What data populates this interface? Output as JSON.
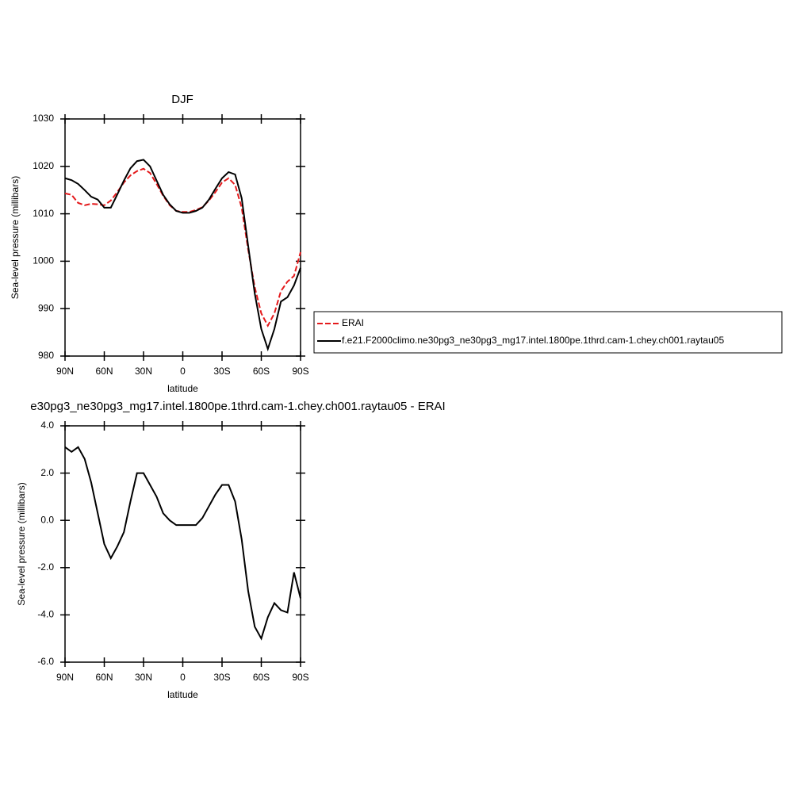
{
  "chart_data": [
    {
      "type": "line",
      "title": "DJF",
      "xlabel": "latitude",
      "ylabel": "Sea-level pressure (millibars)",
      "x": [
        90,
        85,
        80,
        75,
        70,
        65,
        60,
        55,
        50,
        45,
        40,
        35,
        30,
        25,
        20,
        15,
        10,
        5,
        0,
        -5,
        -10,
        -15,
        -20,
        -25,
        -30,
        -35,
        -40,
        -45,
        -50,
        -55,
        -60,
        -65,
        -70,
        -75,
        -80,
        -85,
        -90
      ],
      "series": [
        {
          "name": "ERAI",
          "color": "#e41a1c",
          "dash": true,
          "values": [
            1014.3,
            1014,
            1012.3,
            1011.8,
            1012.1,
            1012,
            1011.8,
            1012.8,
            1014.6,
            1016.6,
            1018.1,
            1019,
            1019.5,
            1018.6,
            1016.3,
            1013.8,
            1011.8,
            1010.6,
            1010.4,
            1010.4,
            1010.8,
            1011.4,
            1012.8,
            1014.6,
            1016.6,
            1017.5,
            1016.1,
            1011.3,
            1002.4,
            994.5,
            989,
            986.4,
            989,
            993.7,
            995.7,
            996.9,
            1001.9
          ]
        },
        {
          "name": "f.e21.F2000climo.ne30pg3_ne30pg3_mg17.intel.1800pe.1thrd.cam-1.chey.ch001.raytau05",
          "color": "#000000",
          "dash": false,
          "values": [
            1017.5,
            1017.1,
            1016.3,
            1015,
            1013.6,
            1013,
            1011.3,
            1011.3,
            1014.1,
            1017,
            1019.6,
            1021.1,
            1021.4,
            1020,
            1017,
            1014,
            1012,
            1010.6,
            1010.2,
            1010.2,
            1010.6,
            1011.3,
            1013,
            1015.3,
            1017.5,
            1018.8,
            1018.3,
            1013.3,
            1003.2,
            993.2,
            985.7,
            981.5,
            985.7,
            991.5,
            992.4,
            994.9,
            998.6
          ]
        }
      ],
      "xlim": [
        90,
        -90
      ],
      "xticks": [
        {
          "value": 90,
          "label": "90N"
        },
        {
          "value": 60,
          "label": "60N"
        },
        {
          "value": 30,
          "label": "30N"
        },
        0,
        {
          "value": -30,
          "label": "30S"
        },
        {
          "value": -60,
          "label": "60S"
        },
        {
          "value": -90,
          "label": "90S"
        }
      ],
      "ylim": [
        980,
        1030
      ],
      "yticks": [
        980,
        990,
        1000,
        1010,
        1020,
        1030
      ],
      "legend": "right"
    },
    {
      "type": "line",
      "title": "e30pg3_ne30pg3_mg17.intel.1800pe.1thrd.cam-1.chey.ch001.raytau05 - ERAI",
      "xlabel": "latitude",
      "ylabel": "Sea-level pressure (millibars)",
      "x": [
        90,
        85,
        80,
        75,
        70,
        65,
        60,
        55,
        50,
        45,
        40,
        35,
        30,
        25,
        20,
        15,
        10,
        5,
        0,
        -5,
        -10,
        -15,
        -20,
        -25,
        -30,
        -35,
        -40,
        -45,
        -50,
        -55,
        -60,
        -65,
        -70,
        -75,
        -80,
        -85,
        -90
      ],
      "series": [
        {
          "color": "#000000",
          "dash": false,
          "values": [
            3.1,
            2.9,
            3.1,
            2.6,
            1.6,
            0.3,
            -1.0,
            -1.6,
            -1.1,
            -0.5,
            0.8,
            2.0,
            2.0,
            1.5,
            1.0,
            0.3,
            0.0,
            -0.2,
            -0.2,
            -0.2,
            -0.2,
            0.1,
            0.6,
            1.1,
            1.5,
            1.5,
            0.8,
            -0.8,
            -3.0,
            -4.5,
            -5.0,
            -4.1,
            -3.5,
            -3.8,
            -3.9,
            -2.2,
            -3.3
          ]
        }
      ],
      "xlim": [
        90,
        -90
      ],
      "xticks": [
        {
          "value": 90,
          "label": "90N"
        },
        {
          "value": 60,
          "label": "60N"
        },
        {
          "value": 30,
          "label": "30N"
        },
        0,
        {
          "value": -30,
          "label": "30S"
        },
        {
          "value": -60,
          "label": "60S"
        },
        {
          "value": -90,
          "label": "90S"
        }
      ],
      "ylim": [
        -6,
        4
      ],
      "yticks": [
        {
          "value": -6,
          "label": "-6.0"
        },
        {
          "value": -4,
          "label": "-4.0"
        },
        {
          "value": -2,
          "label": "-2.0"
        },
        {
          "value": 0,
          "label": "0.0"
        },
        {
          "value": 2,
          "label": "2.0"
        },
        {
          "value": 4,
          "label": "4.0"
        }
      ]
    }
  ]
}
